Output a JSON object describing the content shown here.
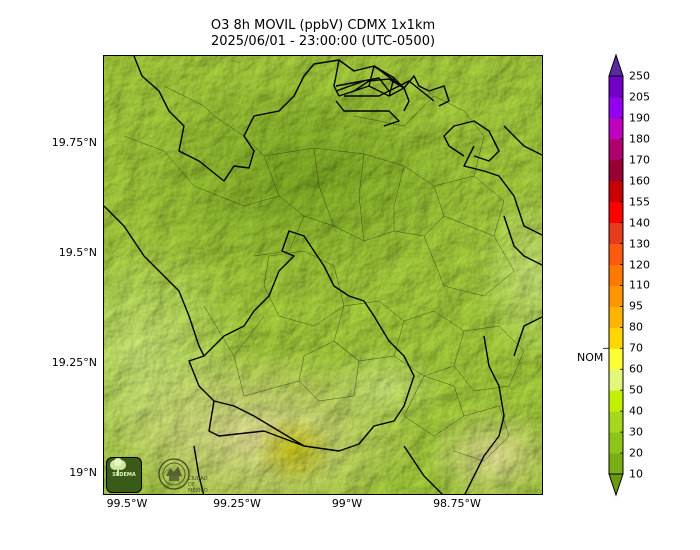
{
  "map": {
    "title_line1": "O3 8h MOVIL (ppbV) CDMX 1x1km",
    "title_line2": "2025/06/01 - 23:00:00 (UTC-0500)",
    "lat_labels": [
      "19.75°N",
      "19.5°N",
      "19.25°N",
      "19°N"
    ],
    "lon_labels": [
      "99.5°W",
      "99.25°W",
      "99°W",
      "98.75°W"
    ],
    "logo_left": "SEDEMA",
    "logo_right": "CIUDAD DE MÉXICO"
  },
  "colorbar": {
    "ticks": [
      "10",
      "20",
      "30",
      "40",
      "50",
      "60",
      "70",
      "80",
      "95",
      "110",
      "120",
      "130",
      "140",
      "155",
      "160",
      "170",
      "180",
      "190",
      "205",
      "250"
    ],
    "colors": [
      "#6a9a0f",
      "#7aaf14",
      "#8cc41a",
      "#a6d81f",
      "#c3f000",
      "#e3f87a",
      "#ffff33",
      "#ffd600",
      "#ffb400",
      "#ff9600",
      "#ff7800",
      "#ff5a10",
      "#e63c1c",
      "#ff0000",
      "#c80000",
      "#990033",
      "#b0006e",
      "#c000c0",
      "#9400f0",
      "#7000c8",
      "#5000a0"
    ],
    "under_color": "#6a9a0f",
    "over_color": "#5a2aa0",
    "nom_label": "NOM",
    "nom_value": 70
  }
}
